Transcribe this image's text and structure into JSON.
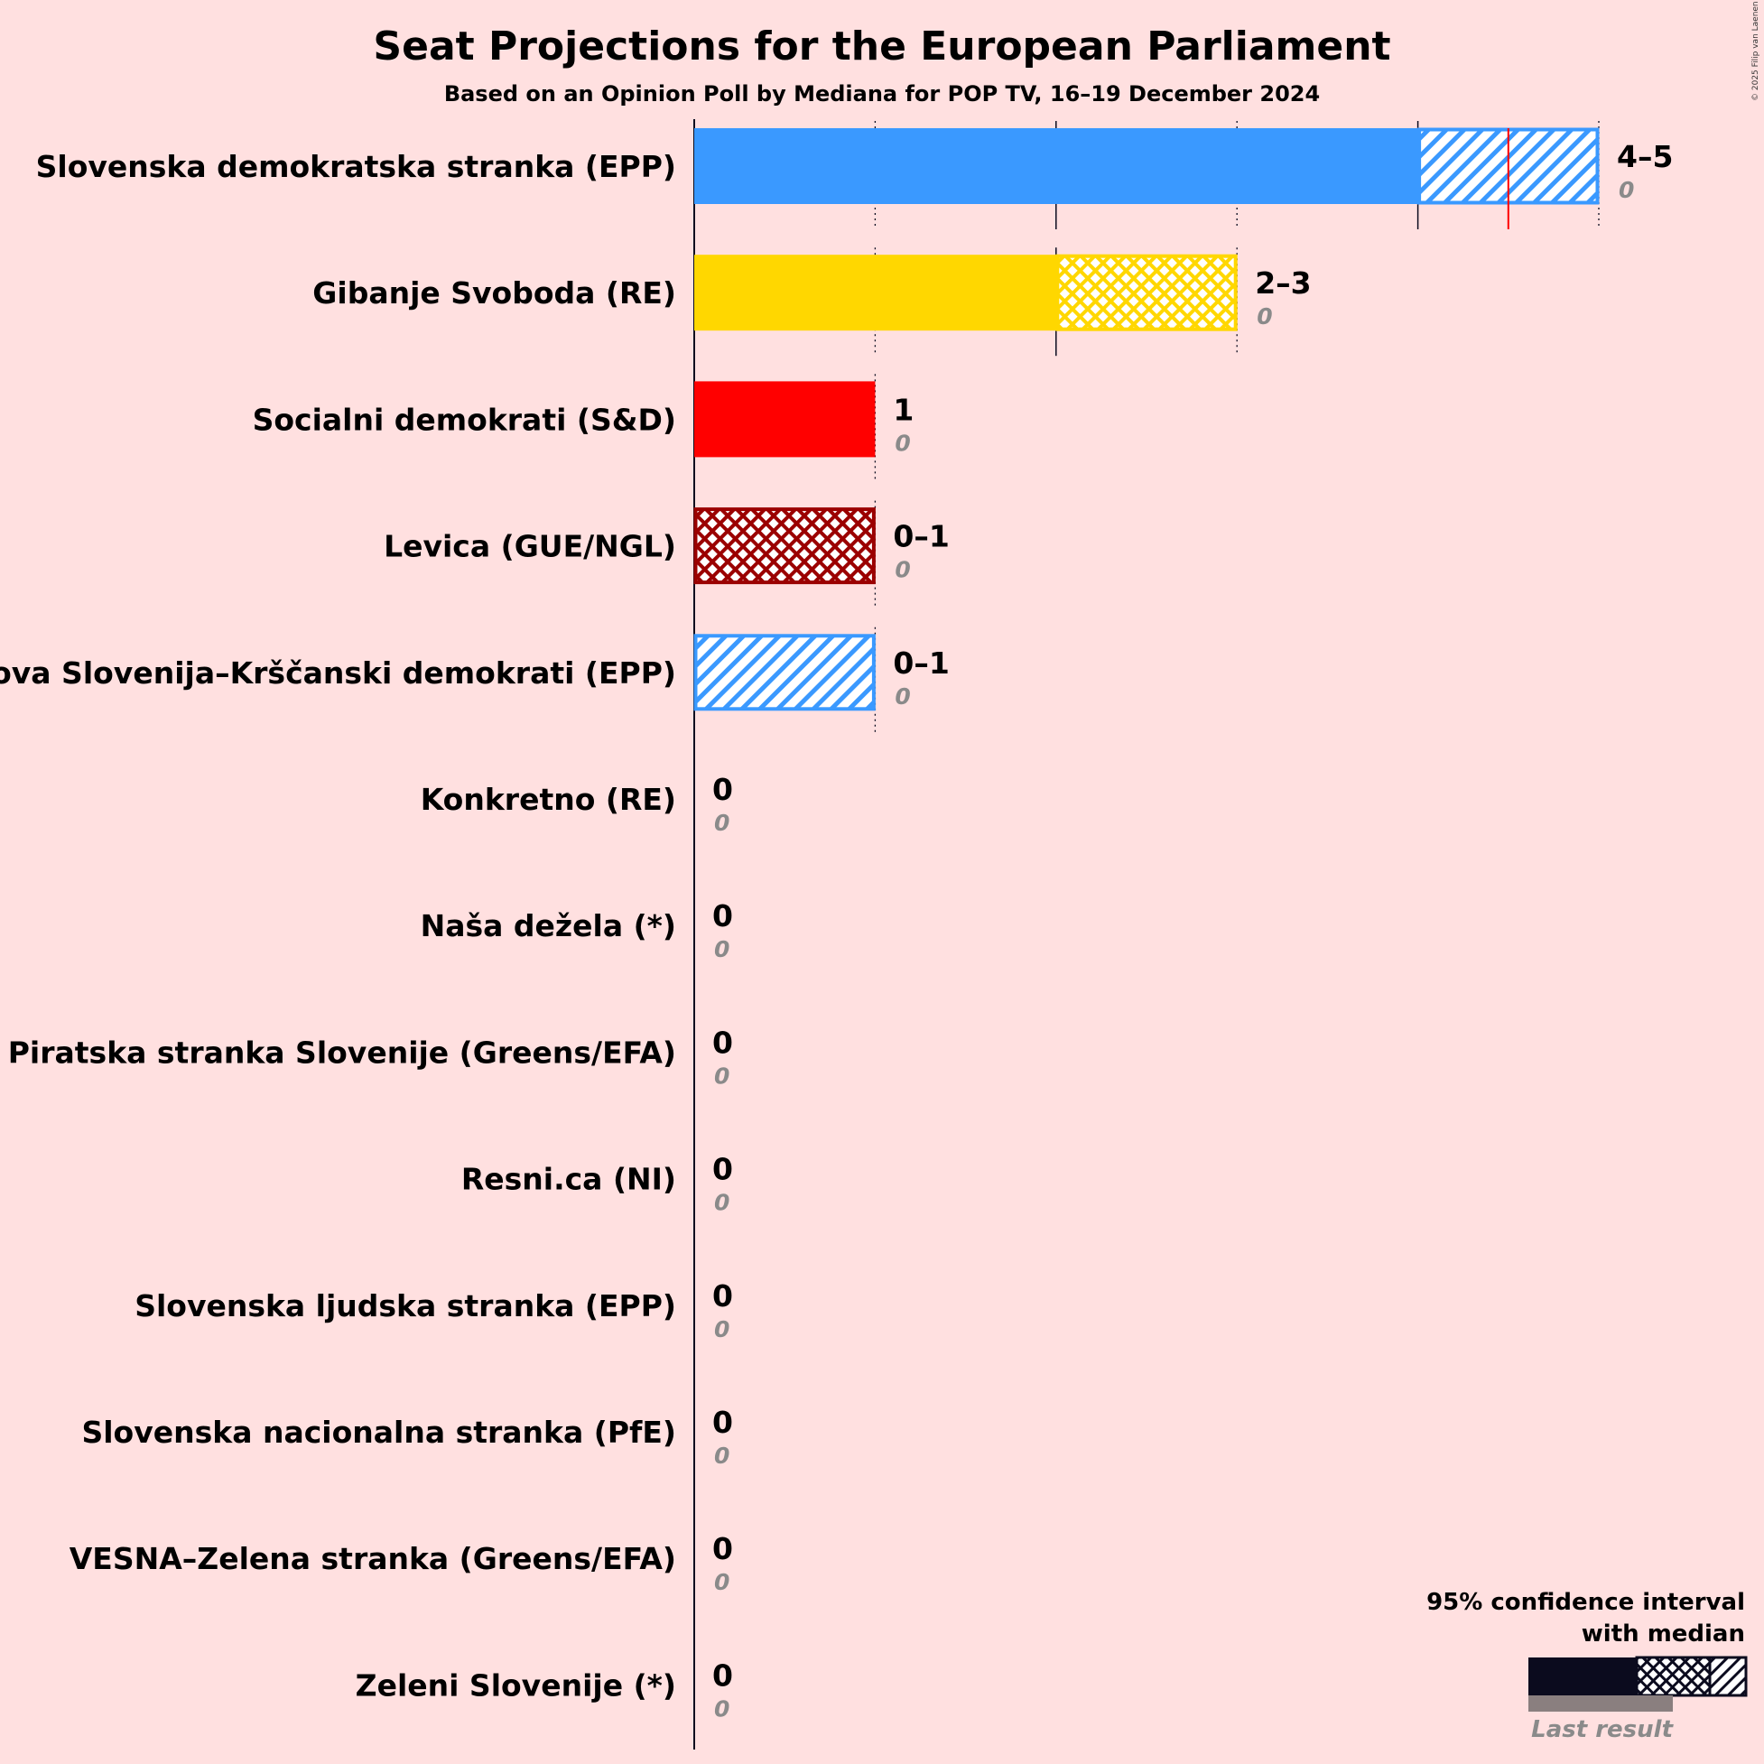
{
  "title": "Seat Projections for the European Parliament",
  "subtitle": "Based on an Opinion Poll by Mediana for POP TV, 16–19 December 2024",
  "copyright": "© 2025 Filip van Laenen",
  "legend": {
    "line1": "95% confidence interval",
    "line2": "with median",
    "last_result": "Last result"
  },
  "chart_data": {
    "type": "bar",
    "orientation": "horizontal",
    "title": "Seat Projections for the European Parliament",
    "subtitle": "Based on an Opinion Poll by Mediana for POP TV, 16–19 December 2024",
    "xlim": [
      0,
      5
    ],
    "categories": [
      "Slovenska demokratska stranka (EPP)",
      "Gibanje Svoboda (RE)",
      "Socialni demokrati (S&D)",
      "Levica (GUE/NGL)",
      "Nova Slovenija–Krščanski demokrati (EPP)",
      "Konkretno (RE)",
      "Naša dežela (*)",
      "Piratska stranka Slovenije (Greens/EFA)",
      "Resni.ca (NI)",
      "Slovenska ljudska stranka (EPP)",
      "Slovenska nacionalna stranka (PfE)",
      "VESNA–Zelena stranka (Greens/EFA)",
      "Zeleni Slovenije (*)"
    ],
    "parties": [
      {
        "name": "Slovenska demokratska stranka (EPP)",
        "color": "#3a99ff",
        "low": 4,
        "high": 5,
        "median": 4.5,
        "range_label": "4–5",
        "last": 0,
        "last_label": "0",
        "style": "solid-hatch"
      },
      {
        "name": "Gibanje Svoboda (RE)",
        "color": "#ffd700",
        "low": 2,
        "high": 3,
        "median": 2,
        "range_label": "2–3",
        "last": 0,
        "last_label": "0",
        "style": "solid-cross"
      },
      {
        "name": "Socialni demokrati (S&D)",
        "color": "#ff0000",
        "low": 1,
        "high": 1,
        "median": 1,
        "range_label": "1",
        "last": 0,
        "last_label": "0",
        "style": "solid"
      },
      {
        "name": "Levica (GUE/NGL)",
        "color": "#9b0000",
        "low": 0,
        "high": 1,
        "median": 0,
        "range_label": "0–1",
        "last": 0,
        "last_label": "0",
        "style": "cross"
      },
      {
        "name": "Nova Slovenija–Krščanski demokrati (EPP)",
        "color": "#3a99ff",
        "low": 0,
        "high": 1,
        "median": 0,
        "range_label": "0–1",
        "last": 0,
        "last_label": "0",
        "style": "hatch"
      },
      {
        "name": "Konkretno (RE)",
        "color": "#ffd700",
        "low": 0,
        "high": 0,
        "median": 0,
        "range_label": "0",
        "last": 0,
        "last_label": "0",
        "style": "none"
      },
      {
        "name": "Naša dežela (*)",
        "color": "#888888",
        "low": 0,
        "high": 0,
        "median": 0,
        "range_label": "0",
        "last": 0,
        "last_label": "0",
        "style": "none"
      },
      {
        "name": "Piratska stranka Slovenije (Greens/EFA)",
        "color": "#000000",
        "low": 0,
        "high": 0,
        "median": 0,
        "range_label": "0",
        "last": 0,
        "last_label": "0",
        "style": "none"
      },
      {
        "name": "Resni.ca (NI)",
        "color": "#888888",
        "low": 0,
        "high": 0,
        "median": 0,
        "range_label": "0",
        "last": 0,
        "last_label": "0",
        "style": "none"
      },
      {
        "name": "Slovenska ljudska stranka (EPP)",
        "color": "#3a99ff",
        "low": 0,
        "high": 0,
        "median": 0,
        "range_label": "0",
        "last": 0,
        "last_label": "0",
        "style": "none"
      },
      {
        "name": "Slovenska nacionalna stranka (PfE)",
        "color": "#000080",
        "low": 0,
        "high": 0,
        "median": 0,
        "range_label": "0",
        "last": 0,
        "last_label": "0",
        "style": "none"
      },
      {
        "name": "VESNA–Zelena stranka (Greens/EFA)",
        "color": "#00a000",
        "low": 0,
        "high": 0,
        "median": 0,
        "range_label": "0",
        "last": 0,
        "last_label": "0",
        "style": "none"
      },
      {
        "name": "Zeleni Slovenije (*)",
        "color": "#00a000",
        "low": 0,
        "high": 0,
        "median": 0,
        "range_label": "0",
        "last": 0,
        "last_label": "0",
        "style": "none"
      }
    ],
    "median_marker": {
      "party": "Slovenska demokratska stranka (EPP)",
      "value": 4.5,
      "color": "#ff0000"
    }
  }
}
